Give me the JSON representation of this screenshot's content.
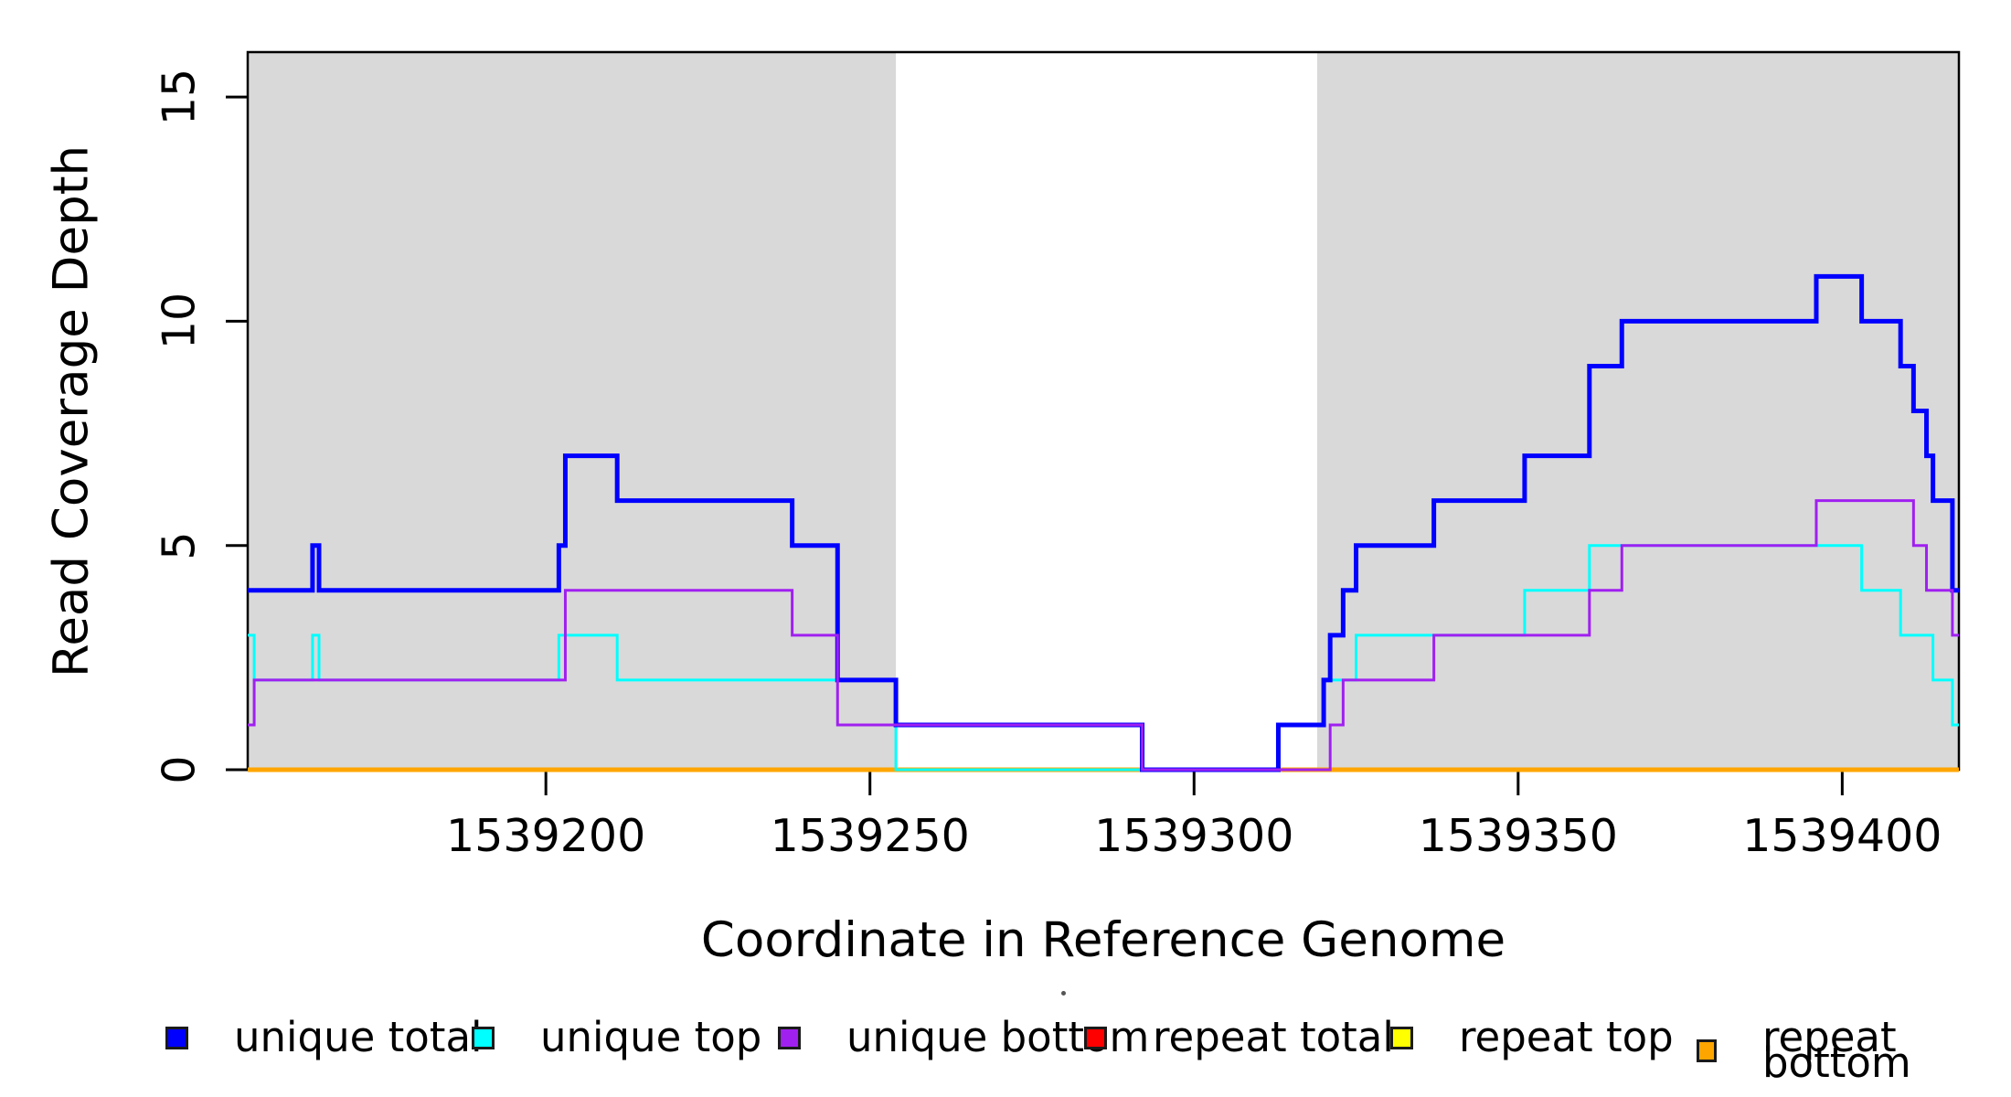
{
  "chart_data": {
    "type": "line",
    "subtype": "step-coverage",
    "title": "",
    "xlabel": "Coordinate in Reference Genome",
    "ylabel": "Read Coverage Depth",
    "xlim": [
      1539154,
      1539418
    ],
    "ylim": [
      0,
      16
    ],
    "grid": false,
    "legend_position": "bottom",
    "background_color": "#ffffff",
    "shaded_region_color": "#d9d9d9",
    "shaded_regions": [
      {
        "x_start": 1539154,
        "x_end": 1539254
      },
      {
        "x_start": 1539319,
        "x_end": 1539418
      }
    ],
    "x_ticks": [
      {
        "value": 1539200,
        "label": "1539200"
      },
      {
        "value": 1539250,
        "label": "1539250"
      },
      {
        "value": 1539300,
        "label": "1539300"
      },
      {
        "value": 1539350,
        "label": "1539350"
      },
      {
        "value": 1539400,
        "label": "1539400"
      }
    ],
    "y_ticks": [
      {
        "value": 0,
        "label": "0"
      },
      {
        "value": 5,
        "label": "5"
      },
      {
        "value": 10,
        "label": "10"
      },
      {
        "value": 15,
        "label": "15"
      }
    ],
    "series": [
      {
        "id": "unique-total",
        "name": "unique total",
        "color": "#0000ff",
        "line_width": 5,
        "points": [
          [
            1539154,
            4
          ],
          [
            1539164,
            5
          ],
          [
            1539165,
            4
          ],
          [
            1539202,
            5
          ],
          [
            1539203,
            7
          ],
          [
            1539211,
            6
          ],
          [
            1539238,
            5
          ],
          [
            1539245,
            2
          ],
          [
            1539254,
            1
          ],
          [
            1539292,
            0
          ],
          [
            1539313,
            1
          ],
          [
            1539320,
            2
          ],
          [
            1539321,
            3
          ],
          [
            1539323,
            4
          ],
          [
            1539325,
            5
          ],
          [
            1539337,
            6
          ],
          [
            1539351,
            7
          ],
          [
            1539361,
            9
          ],
          [
            1539366,
            10
          ],
          [
            1539396,
            11
          ],
          [
            1539403,
            10
          ],
          [
            1539409,
            9
          ],
          [
            1539411,
            8
          ],
          [
            1539413,
            7
          ],
          [
            1539414,
            6
          ],
          [
            1539417,
            4
          ]
        ]
      },
      {
        "id": "unique-top",
        "name": "unique top",
        "color": "#00ffff",
        "line_width": 3,
        "points": [
          [
            1539154,
            3
          ],
          [
            1539155,
            2
          ],
          [
            1539164,
            3
          ],
          [
            1539165,
            2
          ],
          [
            1539202,
            3
          ],
          [
            1539211,
            2
          ],
          [
            1539254,
            0
          ],
          [
            1539313,
            1
          ],
          [
            1539320,
            2
          ],
          [
            1539325,
            3
          ],
          [
            1539351,
            4
          ],
          [
            1539361,
            5
          ],
          [
            1539403,
            4
          ],
          [
            1539409,
            3
          ],
          [
            1539414,
            2
          ],
          [
            1539417,
            1
          ]
        ]
      },
      {
        "id": "unique-bottom",
        "name": "unique bottom",
        "color": "#a020f0",
        "line_width": 3,
        "points": [
          [
            1539154,
            1
          ],
          [
            1539155,
            2
          ],
          [
            1539203,
            4
          ],
          [
            1539238,
            3
          ],
          [
            1539245,
            1
          ],
          [
            1539292,
            0
          ],
          [
            1539321,
            1
          ],
          [
            1539323,
            2
          ],
          [
            1539337,
            3
          ],
          [
            1539361,
            4
          ],
          [
            1539366,
            5
          ],
          [
            1539396,
            6
          ],
          [
            1539411,
            5
          ],
          [
            1539413,
            4
          ],
          [
            1539417,
            3
          ]
        ]
      },
      {
        "id": "repeat-total",
        "name": "repeat total",
        "color": "#ff0000",
        "line_width": 3,
        "points": [
          [
            1539154,
            0
          ]
        ]
      },
      {
        "id": "repeat-top",
        "name": "repeat top",
        "color": "#ffff00",
        "line_width": 3,
        "points": [
          [
            1539154,
            0
          ]
        ]
      },
      {
        "id": "repeat-bottom",
        "name": "repeat bottom",
        "color": "#ffa500",
        "line_width": 5,
        "points": [
          [
            1539154,
            0
          ]
        ]
      }
    ],
    "draw_order": [
      "repeat-total",
      "repeat-top",
      "repeat-bottom",
      "unique-top",
      "unique-total",
      "unique-bottom"
    ]
  }
}
